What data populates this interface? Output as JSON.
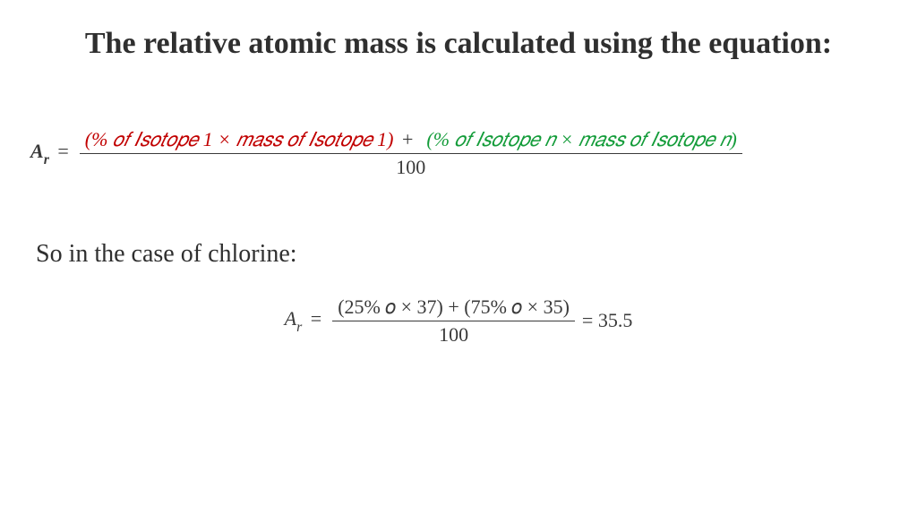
{
  "title": "The relative atomic mass is calculated using the equation:",
  "eq1": {
    "lhs_symbol": "A",
    "lhs_sub": "r",
    "term1": "(% 𝑜𝑓 𝐼𝑠𝑜𝑡𝑜𝑝𝑒 1 × 𝑚𝑎𝑠𝑠 𝑜𝑓 𝐼𝑠𝑜𝑡𝑜𝑝𝑒 1)",
    "plus": "+",
    "term2": "(% 𝑜𝑓 𝐼𝑠𝑜𝑡𝑜𝑝𝑒 𝑛 × 𝑚𝑎𝑠𝑠 𝑜𝑓 𝐼𝑠𝑜𝑡𝑜𝑝𝑒 𝑛)",
    "denominator": "100",
    "term1_color": "#c10000",
    "term2_color": "#149c3a"
  },
  "subtitle": "So in the case of chlorine:",
  "eq2": {
    "lhs_symbol": "A",
    "lhs_sub": "r",
    "numerator": "(25% 𝑜 × 37) +  (75% 𝑜 × 35)",
    "denominator": "100",
    "result": "= 35.5"
  },
  "colors": {
    "text": "#3a3a3a",
    "background": "#ffffff"
  }
}
